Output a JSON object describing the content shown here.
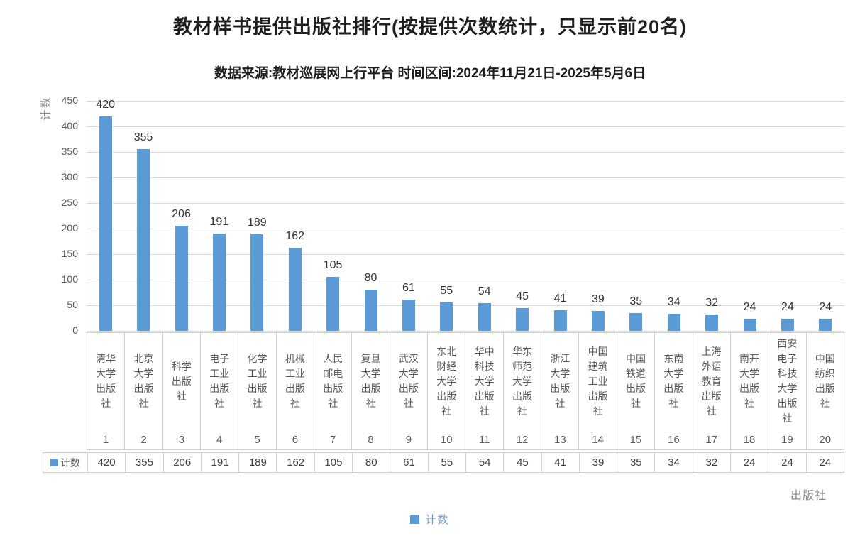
{
  "title": "教材样书提供出版社排行(按提供次数统计，只显示前20名)",
  "subtitle": "数据来源:教材巡展网上行平台 时间区间:2024年11月21日-2025年5月6日",
  "chart_data": {
    "type": "bar",
    "title": "教材样书提供出版社排行(按提供次数统计，只显示前20名)",
    "subtitle": "数据来源:教材巡展网上行平台 时间区间:2024年11月21日-2025年5月6日",
    "categories": [
      "清华大学出版社",
      "北京大学出版社",
      "科学出版社",
      "电子工业出版社",
      "化学工业出版社",
      "机械工业出版社",
      "人民邮电出版社",
      "复旦大学出版社",
      "武汉大学出版社",
      "东北财经大学出版社",
      "华中科技大学出版社",
      "华东师范大学出版社",
      "浙江大学出版社",
      "中国建筑工业出版社",
      "中国铁道出版社",
      "东南大学出版社",
      "上海外语教育出版社",
      "南开大学出版社",
      "西安电子科技大学出版社",
      "中国纺织出版社"
    ],
    "category_ranks": [
      "1",
      "2",
      "3",
      "4",
      "5",
      "6",
      "7",
      "8",
      "9",
      "10",
      "11",
      "12",
      "13",
      "14",
      "15",
      "16",
      "17",
      "18",
      "19",
      "20"
    ],
    "series": [
      {
        "name": "计数",
        "values": [
          420,
          355,
          206,
          191,
          189,
          162,
          105,
          80,
          61,
          55,
          54,
          45,
          41,
          39,
          35,
          34,
          32,
          24,
          24,
          24
        ]
      }
    ],
    "xlabel": "出版社",
    "ylabel": "计数",
    "ylim": [
      0,
      450
    ],
    "ytick_step": 50,
    "yticks": [
      0,
      50,
      100,
      150,
      200,
      250,
      300,
      350,
      400,
      450
    ],
    "grid": true,
    "legend_position": "bottom",
    "legend_label": "计数",
    "data_table_shown": true,
    "colors": {
      "bar": "#5b9bd5",
      "gridline": "#d9d9d9",
      "axis_text": "#595959",
      "value_label": "#333333",
      "table_border": "#cfcfcf",
      "muted_label": "#8a8a8a",
      "legend_text": "#7293c1"
    }
  }
}
